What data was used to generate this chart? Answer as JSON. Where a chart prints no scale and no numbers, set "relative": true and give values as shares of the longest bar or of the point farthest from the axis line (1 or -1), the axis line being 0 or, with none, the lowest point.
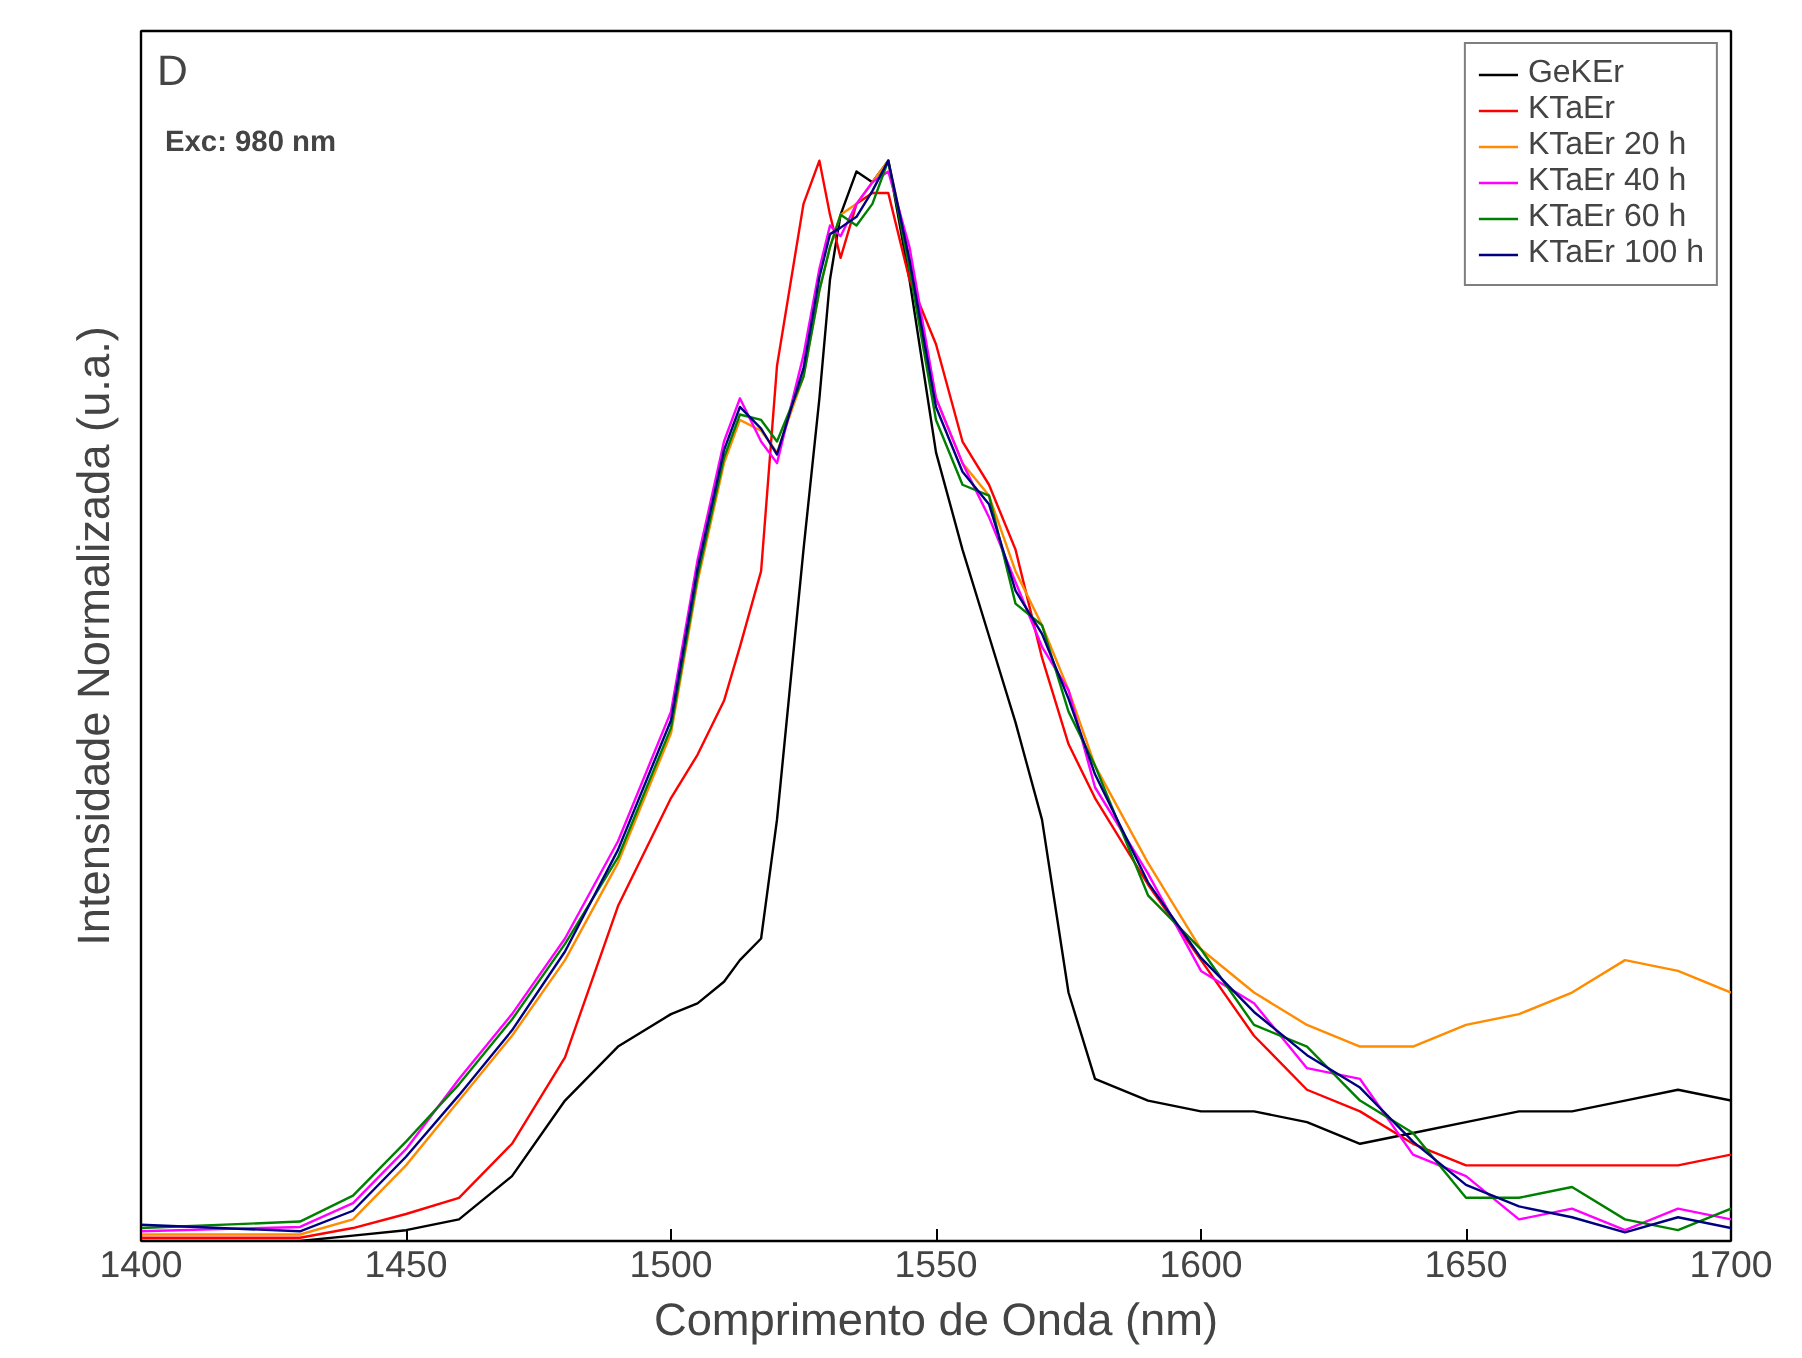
{
  "chart_data": {
    "type": "line",
    "relative": true,
    "xlabel": "Comprimento de Onda (nm)",
    "ylabel": "Intensidade Normalizada (u.a.)",
    "annotations": [
      "D",
      "Exc: 980 nm"
    ],
    "xlim": [
      1400,
      1700
    ],
    "xticks": [
      1400,
      1450,
      1500,
      1550,
      1600,
      1650,
      1700
    ],
    "tick_labels": "x",
    "grid": false,
    "legend": "top right",
    "marker": "none",
    "line_style": "solid",
    "x": [
      1400,
      1430,
      1440,
      1450,
      1460,
      1470,
      1480,
      1490,
      1500,
      1505,
      1510,
      1513,
      1517,
      1520,
      1525,
      1528,
      1530,
      1532,
      1535,
      1538,
      1541,
      1545,
      1550,
      1555,
      1560,
      1565,
      1570,
      1575,
      1580,
      1590,
      1600,
      1610,
      1620,
      1630,
      1640,
      1650,
      1660,
      1670,
      1680,
      1690,
      1700
    ],
    "series": [
      {
        "name": "GeKEr",
        "color": "#000000",
        "values": [
          0,
          0,
          0.005,
          0.01,
          0.02,
          0.06,
          0.13,
          0.18,
          0.21,
          0.22,
          0.24,
          0.26,
          0.28,
          0.39,
          0.64,
          0.78,
          0.89,
          0.95,
          0.99,
          0.98,
          1.0,
          0.89,
          0.73,
          0.64,
          0.56,
          0.48,
          0.39,
          0.23,
          0.15,
          0.13,
          0.12,
          0.12,
          0.11,
          0.09,
          0.1,
          0.11,
          0.12,
          0.12,
          0.13,
          0.14,
          0.13
        ]
      },
      {
        "name": "KTaEr",
        "color": "#ff0000",
        "values": [
          0.003,
          0.003,
          0.012,
          0.025,
          0.04,
          0.09,
          0.17,
          0.31,
          0.41,
          0.45,
          0.5,
          0.55,
          0.62,
          0.81,
          0.96,
          1.0,
          0.95,
          0.91,
          0.96,
          0.97,
          0.97,
          0.89,
          0.83,
          0.74,
          0.7,
          0.64,
          0.54,
          0.46,
          0.41,
          0.33,
          0.26,
          0.19,
          0.14,
          0.12,
          0.09,
          0.07,
          0.07,
          0.07,
          0.07,
          0.07,
          0.08
        ]
      },
      {
        "name": "KTaEr 20 h",
        "color": "#ff8c00",
        "values": [
          0.006,
          0.006,
          0.02,
          0.07,
          0.13,
          0.19,
          0.26,
          0.35,
          0.47,
          0.61,
          0.72,
          0.76,
          0.75,
          0.73,
          0.8,
          0.88,
          0.92,
          0.95,
          0.96,
          0.98,
          1.0,
          0.91,
          0.78,
          0.72,
          0.69,
          0.62,
          0.57,
          0.51,
          0.44,
          0.35,
          0.27,
          0.23,
          0.2,
          0.18,
          0.18,
          0.2,
          0.21,
          0.23,
          0.26,
          0.25,
          0.23
        ]
      },
      {
        "name": "KTaEr 40 h",
        "color": "#ff00ff",
        "values": [
          0.009,
          0.013,
          0.035,
          0.085,
          0.15,
          0.21,
          0.28,
          0.37,
          0.49,
          0.63,
          0.74,
          0.78,
          0.74,
          0.72,
          0.82,
          0.9,
          0.94,
          0.93,
          0.96,
          0.98,
          0.99,
          0.92,
          0.78,
          0.72,
          0.67,
          0.61,
          0.55,
          0.51,
          0.42,
          0.34,
          0.25,
          0.22,
          0.16,
          0.15,
          0.08,
          0.06,
          0.02,
          0.03,
          0.01,
          0.03,
          0.02
        ]
      },
      {
        "name": "KTaEr 60 h",
        "color": "#008000",
        "values": [
          0.012,
          0.018,
          0.042,
          0.092,
          0.145,
          0.205,
          0.275,
          0.355,
          0.475,
          0.615,
          0.725,
          0.765,
          0.76,
          0.74,
          0.8,
          0.88,
          0.92,
          0.95,
          0.94,
          0.96,
          1.0,
          0.9,
          0.76,
          0.7,
          0.69,
          0.59,
          0.57,
          0.49,
          0.44,
          0.32,
          0.27,
          0.2,
          0.18,
          0.13,
          0.1,
          0.04,
          0.04,
          0.05,
          0.02,
          0.01,
          0.03
        ]
      },
      {
        "name": "KTaEr 100 h",
        "color": "#000080",
        "values": [
          0.015,
          0.009,
          0.028,
          0.078,
          0.135,
          0.195,
          0.268,
          0.362,
          0.482,
          0.622,
          0.732,
          0.772,
          0.752,
          0.728,
          0.808,
          0.892,
          0.932,
          0.938,
          0.948,
          0.972,
          1.0,
          0.908,
          0.772,
          0.712,
          0.682,
          0.602,
          0.562,
          0.502,
          0.432,
          0.332,
          0.262,
          0.212,
          0.172,
          0.142,
          0.092,
          0.052,
          0.032,
          0.022,
          0.008,
          0.022,
          0.012
        ]
      }
    ]
  }
}
